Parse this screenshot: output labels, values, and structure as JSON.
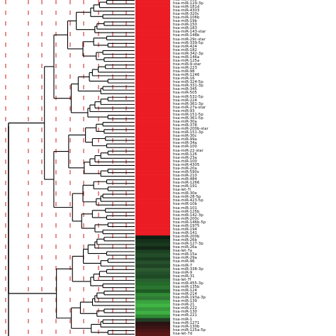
{
  "heatmap": {
    "labels": [
      "hsa-miR-30b",
      "hsa-miR-129-3p",
      "hsa-miR-181d",
      "hsa-miR-4303",
      "hsa-miR-320c",
      "hsa-miR-106b",
      "hsa-miR-19b",
      "hsa-miR-150",
      "hsa-miR-183",
      "hsa-miR-143-star",
      "hsa-miR-148b",
      "hsa-miR-29c-star",
      "hsa-miR-339-5p",
      "hsa-miR-424",
      "hsa-miR-182",
      "hsa-miR-342-3p",
      "hsa-miR-146a",
      "hsa-miR-125a",
      "hsa-miR-9-star",
      "hsa-miR-223",
      "hsa-miR-98",
      "hsa-miR-1246",
      "hsa-miR-16",
      "hsa-miR-324-5p",
      "hsa-miR-331-3p",
      "hsa-miR-345",
      "hsa-miR-505",
      "hsa-miR-532-5p",
      "hsa-miR-224",
      "hsa-miR-361-3p",
      "hsa-miR-27a-star",
      "hsa-miR-93",
      "hsa-miR-151-5p",
      "hsa-miR-361-5p",
      "hsa-miR-30a",
      "hsa-miR-378",
      "hsa-miR-200b-star",
      "hsa-miR-151-3p",
      "hsa-miR-30c",
      "hsa-miR-99a",
      "hsa-miR-34a",
      "hsa-miR-100",
      "hsa-miR-22-star",
      "hsa-miR-126",
      "hsa-miR-23a",
      "hsa-miR-100",
      "hsa-miR-4305",
      "hsa-miR-20a",
      "hsa-miR-590s",
      "hsa-miR-210",
      "hsa-miR-484",
      "hsa-miR-1266",
      "hsa-miR-191",
      "hsa-let-7i",
      "hsa-miR-30e",
      "hsa-miR-28-5p",
      "hsa-miR-423-5p",
      "hsa-miR-10b",
      "hsa-miR-101",
      "hsa-miR-125b",
      "hsa-miR-142-3p",
      "hsa-miR-200c",
      "hsa-miR-146b-5p",
      "hsa-miR-1975",
      "hsa-miR-194",
      "hsa-miR-141",
      "hsa-miR-200b",
      "hsa-miR-26b",
      "hsa-miR-127-3p",
      "hsa-miR-26a",
      "hsa-let-7a",
      "hsa-miR-15a",
      "hsa-miR-29a",
      "hsa-miR-96",
      "hsa-miR-7",
      "hsa-miR-338-3p",
      "hsa-miR-9",
      "hsa-miR-31",
      "hsa-let-7f",
      "hsa-miR-455-3p",
      "hsa-miR-135b",
      "hsa-miR-124",
      "hsa-miR-214",
      "hsa-miR-193a-3p",
      "hsa-miR-139",
      "hsa-miR-21",
      "hsa-miR-222",
      "hsa-miR-130",
      "hsa-miR-221",
      "hsa-miR-1",
      "hsa-miR-1271",
      "hsa-miR-130b",
      "hsa-miR-125a-5p",
      "hsa-let-7d"
    ],
    "cell_colors": [
      "#ec1c24",
      "#ec1c24",
      "#ec1c24",
      "#ec1c24",
      "#ec1c24",
      "#ec1c24",
      "#ec1c24",
      "#ec1c24",
      "#ec1c24",
      "#ec1c24",
      "#ec1c24",
      "#ec1c24",
      "#ec1c24",
      "#ec1c24",
      "#ec1c24",
      "#ec1c24",
      "#ec1c24",
      "#ec1c24",
      "#ec1c24",
      "#ec1c24",
      "#ec1c24",
      "#ec1c24",
      "#ec1c24",
      "#ec1c24",
      "#ec1c24",
      "#ec1c24",
      "#ec1c24",
      "#ec1c24",
      "#ec1c24",
      "#ec1c24",
      "#ec1c24",
      "#ec1c24",
      "#ec1c24",
      "#ec1c24",
      "#ec1c24",
      "#ec1c24",
      "#ec1c24",
      "#ec1c24",
      "#ec1c24",
      "#ec1c24",
      "#ec1c24",
      "#ec1c24",
      "#ec1c24",
      "#ec1c24",
      "#ec1c24",
      "#ec1c24",
      "#ec1c24",
      "#ec1c24",
      "#ec1c24",
      "#ec1c24",
      "#ec1c24",
      "#ec1c24",
      "#ec1c24",
      "#ec1c24",
      "#ec1c24",
      "#ec1c24",
      "#ec1c24",
      "#ec1c24",
      "#ec1c24",
      "#ec1c24",
      "#ec1c24",
      "#ec1c24",
      "#ec1c24",
      "#ec1c24",
      "#ec1c24",
      "#ec1c24",
      "#0f1f12",
      "#15301a",
      "#1a3a1f",
      "#122616",
      "#1c4222",
      "#224d28",
      "#1a3c1f",
      "#274f2c",
      "#1f4424",
      "#2d5a31",
      "#23502a",
      "#1e4a24",
      "#2a5f30",
      "#246b2a",
      "#2b7431",
      "#1d5b24",
      "#318a37",
      "#2f7a34",
      "#3aa43f",
      "#41b546",
      "#36983b",
      "#3fb044",
      "#2e8a33",
      "#223f25",
      "#2a1312",
      "#3a1414",
      "#4d1616",
      "#5a1818"
    ]
  }
}
